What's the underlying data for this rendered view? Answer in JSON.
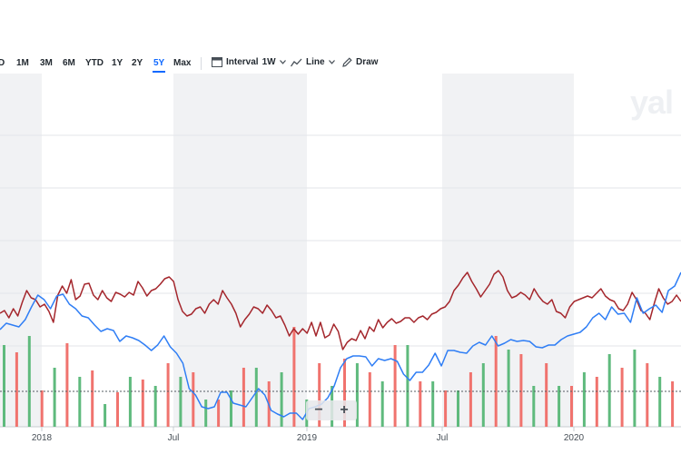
{
  "toolbar": {
    "ranges": [
      "D",
      "1M",
      "3M",
      "6M",
      "YTD",
      "1Y",
      "2Y",
      "5Y",
      "Max"
    ],
    "active_range": "5Y",
    "interval_label": "Interval",
    "interval_value": "1W",
    "chart_type_label": "Line",
    "draw_label": "Draw"
  },
  "watermark": "yal",
  "zoom": {
    "minus": "−",
    "plus": "+"
  },
  "colors": {
    "series_blue": "#2f7ef5",
    "series_red": "#a4262c",
    "volume_up": "#5fba7d",
    "volume_down": "#f0736e",
    "shade": "#f1f2f4"
  },
  "chart_data": {
    "type": "line",
    "x_tick_labels": [
      "2018",
      "Jul",
      "2019",
      "Jul",
      "2020"
    ],
    "series": [
      {
        "color": "#a4262c",
        "values": [
          345,
          342,
          350,
          340,
          348,
          333,
          320,
          328,
          330,
          338,
          335,
          343,
          355,
          325,
          315,
          323,
          308,
          330,
          326,
          313,
          312,
          325,
          330,
          320,
          328,
          332,
          322,
          324,
          327,
          322,
          325,
          310,
          317,
          326,
          320,
          318,
          313,
          307,
          305,
          310,
          330,
          343,
          348,
          346,
          340,
          338,
          345,
          335,
          330,
          335,
          320,
          328,
          335,
          345,
          360,
          352,
          346,
          338,
          340,
          345,
          336,
          342,
          350,
          348,
          358,
          370,
          362,
          368,
          362,
          367,
          355,
          370,
          355,
          372,
          369,
          357,
          365,
          385,
          377,
          373,
          375,
          364,
          373,
          360,
          365,
          352,
          361,
          355,
          351,
          356,
          354,
          350,
          350,
          355,
          350,
          348,
          352,
          346,
          344,
          340,
          338,
          332,
          320,
          314,
          306,
          300,
          310,
          318,
          327,
          320,
          313,
          302,
          298,
          305,
          320,
          328,
          326,
          322,
          325,
          330,
          318,
          326,
          332,
          335,
          330,
          343,
          345,
          350,
          338,
          332,
          330,
          328,
          326,
          328,
          323,
          318,
          326,
          330,
          332,
          340,
          342,
          335,
          322,
          330,
          342,
          345,
          352,
          334,
          318,
          328,
          335,
          332,
          325,
          332
        ]
      },
      {
        "color": "#2f7ef5",
        "values": [
          363,
          356,
          358,
          360,
          352,
          338,
          325,
          330,
          340,
          326,
          324,
          335,
          340,
          348,
          350,
          358,
          365,
          362,
          364,
          376,
          370,
          372,
          375,
          380,
          386,
          380,
          370,
          382,
          389,
          400,
          428,
          435,
          448,
          450,
          448,
          432,
          432,
          444,
          446,
          448,
          438,
          428,
          435,
          452,
          456,
          459,
          455,
          455,
          462,
          450,
          448,
          445,
          438,
          425,
          405,
          395,
          392,
          392,
          393,
          403,
          395,
          397,
          395,
          398,
          412,
          419,
          410,
          410,
          402,
          389,
          403,
          386,
          386,
          388,
          389,
          381,
          377,
          380,
          370,
          381,
          378,
          374,
          376,
          375,
          376,
          382,
          383,
          380,
          380,
          374,
          370,
          368,
          366,
          360,
          350,
          345,
          352,
          338,
          346,
          345,
          355,
          328,
          345,
          340,
          336,
          344,
          320,
          315,
          300
        ]
      }
    ],
    "volume": {
      "up": [
        380,
        370,
        405,
        415,
        445,
        415,
        425,
        415,
        440,
        430,
        405,
        410,
        440,
        425,
        400,
        420,
        380,
        420,
        430,
        400,
        385,
        425,
        425,
        410,
        390,
        385,
        415
      ],
      "down": [
        388,
        430,
        378,
        408,
        432,
        418,
        400,
        410,
        440,
        405,
        420,
        360,
        400,
        395,
        410,
        380,
        420,
        430,
        410,
        370,
        390,
        400,
        425,
        415,
        405,
        400,
        420
      ]
    }
  }
}
